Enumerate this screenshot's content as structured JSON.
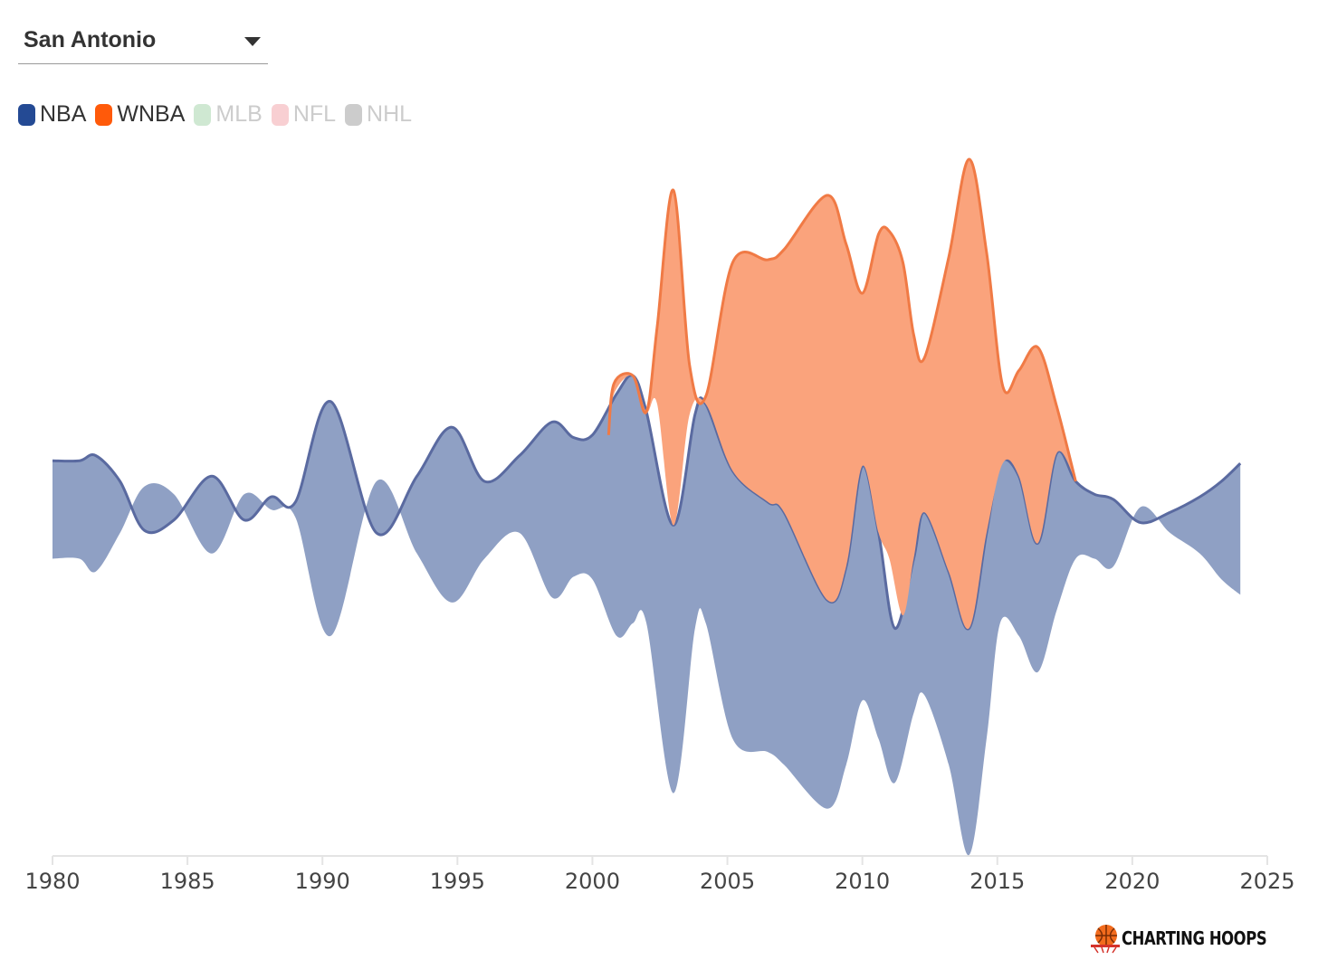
{
  "filter": {
    "selected": "San Antonio"
  },
  "legend": [
    {
      "label": "NBA",
      "color": "#244a94",
      "active": true
    },
    {
      "label": "WNBA",
      "color": "#ff5a0a",
      "active": true
    },
    {
      "label": "MLB",
      "color": "#cfe8d2",
      "active": false
    },
    {
      "label": "NFL",
      "color": "#f8cfd2",
      "active": false
    },
    {
      "label": "NHL",
      "color": "#cccccc",
      "active": false
    }
  ],
  "colors": {
    "nba_fill": "#8fa0c4",
    "nba_line": "#5a6aa0",
    "wnba_fill": "#faa37c",
    "wnba_line": "#f07a45",
    "axis": "#e4e4e4",
    "inactive_text": "#cccccc"
  },
  "brand": {
    "text": "CHARTING HOOPS",
    "icon": "basketball-hoop-icon"
  },
  "chart_data": {
    "type": "area",
    "subtype": "streamgraph",
    "title": "",
    "xlabel": "",
    "ylabel": "",
    "xlim": [
      1980,
      2025
    ],
    "x_ticks": [
      1980,
      1985,
      1990,
      1995,
      2000,
      2005,
      2010,
      2015,
      2020,
      2025
    ],
    "ylim": [
      -1.35,
      1.35
    ],
    "series": [
      {
        "name": "NBA",
        "points": [
          [
            1980,
            -0.2,
            0.18
          ],
          [
            1981,
            -0.2,
            0.18
          ],
          [
            1981.6,
            -0.25,
            0.2
          ],
          [
            1982.5,
            -0.1,
            0.1
          ],
          [
            1983.4,
            0.08,
            -0.09
          ],
          [
            1984.5,
            0.05,
            -0.05
          ],
          [
            1985.9,
            -0.18,
            0.12
          ],
          [
            1987.1,
            0.05,
            -0.05
          ],
          [
            1988.1,
            -0.01,
            0.04
          ],
          [
            1989,
            -0.04,
            0.02
          ],
          [
            1990.3,
            -0.5,
            0.41
          ],
          [
            1992,
            0.1,
            -0.1
          ],
          [
            1993.5,
            -0.18,
            0.12
          ],
          [
            1994.8,
            -0.37,
            0.31
          ],
          [
            1996,
            -0.2,
            0.1
          ],
          [
            1997.3,
            -0.1,
            0.2
          ],
          [
            1998.5,
            -0.35,
            0.33
          ],
          [
            1999.3,
            -0.27,
            0.27
          ],
          [
            2000,
            -0.28,
            0.28
          ],
          [
            2000.9,
            -0.5,
            0.44
          ],
          [
            2001.5,
            -0.45,
            0.51
          ],
          [
            2002,
            -0.45,
            0.37
          ],
          [
            2003,
            -1.11,
            -0.07
          ],
          [
            2003.8,
            -0.47,
            0.36
          ],
          [
            2004.2,
            -0.45,
            0.4
          ],
          [
            2005.2,
            -0.9,
            0.14
          ],
          [
            2006.5,
            -0.95,
            0.02
          ],
          [
            2007.1,
            -1.0,
            -0.02
          ],
          [
            2008.7,
            -1.17,
            -0.36
          ],
          [
            2009.4,
            -1.0,
            -0.23
          ],
          [
            2010,
            -0.75,
            0.16
          ],
          [
            2010.6,
            -0.9,
            -0.1
          ],
          [
            2011.2,
            -1.07,
            -0.47
          ],
          [
            2011.9,
            -0.8,
            -0.2
          ],
          [
            2012.3,
            -0.73,
            -0.02
          ],
          [
            2013.2,
            -1.0,
            -0.25
          ],
          [
            2013.95,
            -1.35,
            -0.47
          ],
          [
            2014.6,
            -0.9,
            -0.1
          ],
          [
            2015.1,
            -0.45,
            0.17
          ],
          [
            2015.8,
            -0.5,
            0.12
          ],
          [
            2016.5,
            -0.64,
            -0.14
          ],
          [
            2017.2,
            -0.4,
            0.21
          ],
          [
            2017.9,
            -0.2,
            0.1
          ],
          [
            2018.6,
            -0.2,
            0.05
          ],
          [
            2019.3,
            -0.23,
            0.03
          ],
          [
            2020.3,
            0.0,
            -0.06
          ],
          [
            2021.4,
            -0.1,
            -0.02
          ],
          [
            2022.5,
            -0.18,
            0.04
          ],
          [
            2023.3,
            -0.28,
            0.1
          ],
          [
            2024,
            -0.34,
            0.17
          ]
        ]
      },
      {
        "name": "WNBA",
        "points": [
          [
            2000.6,
            0.28,
            0.28
          ],
          [
            2000.8,
            0.44,
            0.48
          ],
          [
            2001.5,
            0.51,
            0.51
          ],
          [
            2002,
            0.37,
            0.37
          ],
          [
            2002.4,
            0.4,
            0.7
          ],
          [
            2003,
            -0.07,
            1.23
          ],
          [
            2003.6,
            0.36,
            0.55
          ],
          [
            2004.2,
            0.4,
            0.43
          ],
          [
            2005.2,
            0.14,
            0.95
          ],
          [
            2006.5,
            0.02,
            0.96
          ],
          [
            2007.1,
            -0.02,
            1.0
          ],
          [
            2008.7,
            -0.36,
            1.21
          ],
          [
            2009.4,
            -0.23,
            1.02
          ],
          [
            2010,
            0.16,
            0.83
          ],
          [
            2010.6,
            -0.1,
            1.06
          ],
          [
            2011,
            -0.2,
            1.07
          ],
          [
            2011.5,
            -0.42,
            0.95
          ],
          [
            2011.9,
            -0.2,
            0.67
          ],
          [
            2012.3,
            -0.02,
            0.58
          ],
          [
            2013.2,
            -0.25,
            0.97
          ],
          [
            2013.95,
            -0.47,
            1.35
          ],
          [
            2014.6,
            -0.1,
            0.99
          ],
          [
            2015.2,
            0.17,
            0.47
          ],
          [
            2015.8,
            0.12,
            0.53
          ],
          [
            2016.5,
            -0.14,
            0.62
          ],
          [
            2017.2,
            0.21,
            0.39
          ],
          [
            2017.9,
            0.1,
            0.1
          ]
        ]
      }
    ]
  }
}
